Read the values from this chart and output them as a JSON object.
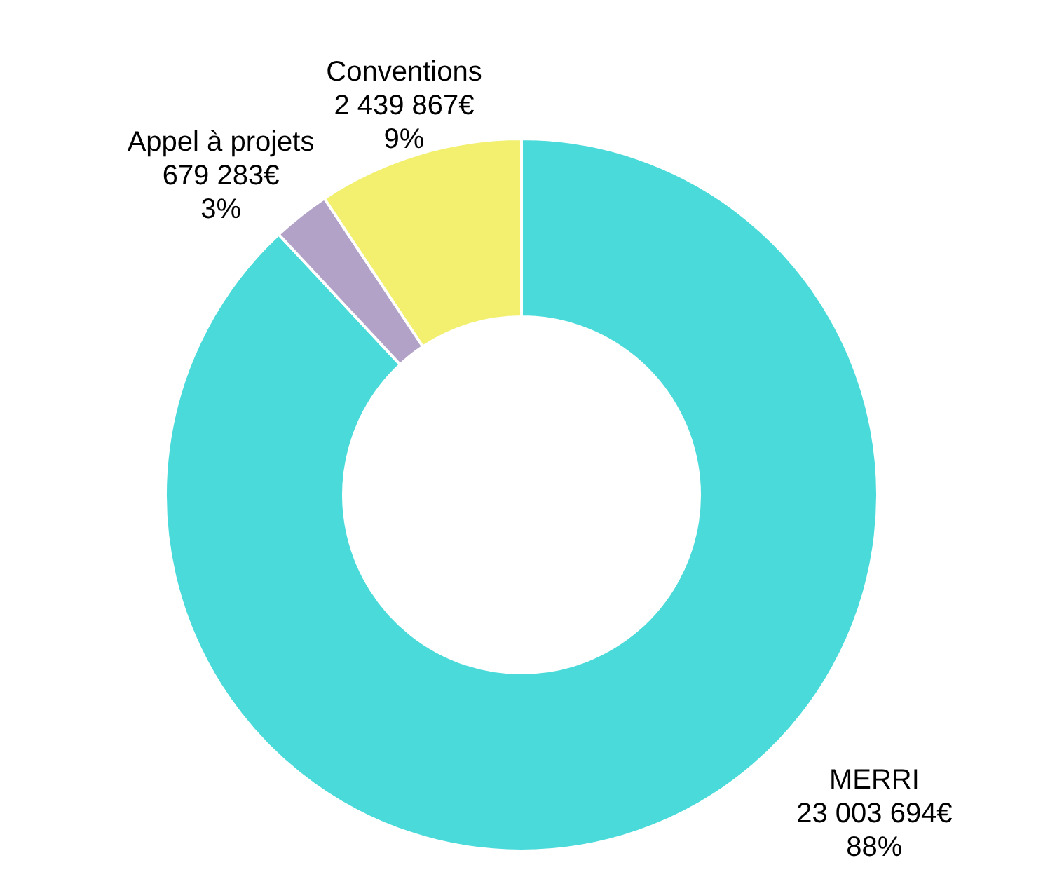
{
  "chart_data": {
    "type": "donut",
    "categories": [
      "MERRI",
      "Appel à projets",
      "Conventions"
    ],
    "values": [
      23003694,
      679283,
      2439867
    ],
    "colors": [
      "#4adada",
      "#b3a2c8",
      "#f2f06e"
    ],
    "value_labels": [
      "23 003 694€\n88%",
      "679 283€\n3%",
      "2 439 867€\n9%"
    ],
    "legend": false
  }
}
